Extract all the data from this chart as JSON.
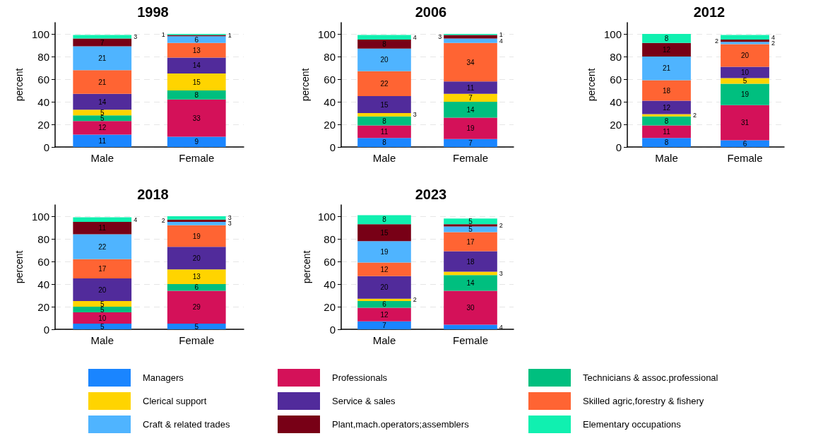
{
  "chart_data": [
    {
      "type": "bar",
      "title": "1998",
      "ylabel": "percent",
      "categories": [
        "Male",
        "Female"
      ],
      "stacked": true,
      "data_labels": true,
      "ylim": [
        0,
        110
      ],
      "yticks": [
        0,
        20,
        40,
        60,
        80,
        100
      ],
      "grid": "y",
      "legend": false,
      "series": [
        {
          "color": "#1a85ff",
          "values": [
            11,
            9
          ]
        },
        {
          "color": "#d41159",
          "values": [
            12,
            33
          ]
        },
        {
          "color": "#00bf7f",
          "values": [
            5,
            8
          ]
        },
        {
          "color": "#ffd400",
          "values": [
            5,
            15
          ]
        },
        {
          "color": "#512b9b",
          "values": [
            14,
            14
          ]
        },
        {
          "color": "#ff6433",
          "values": [
            21,
            13
          ]
        },
        {
          "color": "#4fb4ff",
          "values": [
            21,
            6
          ]
        },
        {
          "color": "#780016",
          "values": [
            7,
            1
          ]
        },
        {
          "color": "#10f0b0",
          "values": [
            3,
            1
          ]
        }
      ]
    },
    {
      "type": "bar",
      "title": "2006",
      "ylabel": "percent",
      "categories": [
        "Male",
        "Female"
      ],
      "stacked": true,
      "data_labels": true,
      "ylim": [
        0,
        110
      ],
      "yticks": [
        0,
        20,
        40,
        60,
        80,
        100
      ],
      "grid": "y",
      "legend": false,
      "series": [
        {
          "color": "#1a85ff",
          "values": [
            8,
            7
          ]
        },
        {
          "color": "#d41159",
          "values": [
            11,
            19
          ]
        },
        {
          "color": "#00bf7f",
          "values": [
            8,
            14
          ]
        },
        {
          "color": "#ffd400",
          "values": [
            3,
            7
          ]
        },
        {
          "color": "#512b9b",
          "values": [
            15,
            11
          ]
        },
        {
          "color": "#ff6433",
          "values": [
            22,
            34
          ]
        },
        {
          "color": "#4fb4ff",
          "values": [
            20,
            4
          ]
        },
        {
          "color": "#780016",
          "values": [
            8,
            3
          ]
        },
        {
          "color": "#10f0b0",
          "values": [
            4,
            1
          ]
        }
      ]
    },
    {
      "type": "bar",
      "title": "2012",
      "ylabel": "percent",
      "categories": [
        "Male",
        "Female"
      ],
      "stacked": true,
      "data_labels": true,
      "ylim": [
        0,
        110
      ],
      "yticks": [
        0,
        20,
        40,
        60,
        80,
        100
      ],
      "grid": "y",
      "legend": false,
      "series": [
        {
          "color": "#1a85ff",
          "values": [
            8,
            6
          ]
        },
        {
          "color": "#d41159",
          "values": [
            11,
            31
          ]
        },
        {
          "color": "#00bf7f",
          "values": [
            8,
            19
          ]
        },
        {
          "color": "#ffd400",
          "values": [
            2,
            5
          ]
        },
        {
          "color": "#512b9b",
          "values": [
            12,
            10
          ]
        },
        {
          "color": "#ff6433",
          "values": [
            18,
            20
          ]
        },
        {
          "color": "#4fb4ff",
          "values": [
            21,
            2
          ]
        },
        {
          "color": "#780016",
          "values": [
            12,
            2
          ]
        },
        {
          "color": "#10f0b0",
          "values": [
            8,
            4
          ]
        }
      ]
    },
    {
      "type": "bar",
      "title": "2018",
      "ylabel": "percent",
      "categories": [
        "Male",
        "Female"
      ],
      "stacked": true,
      "data_labels": true,
      "ylim": [
        0,
        110
      ],
      "yticks": [
        0,
        20,
        40,
        60,
        80,
        100
      ],
      "grid": "y",
      "legend": false,
      "series": [
        {
          "color": "#1a85ff",
          "values": [
            5,
            5
          ]
        },
        {
          "color": "#d41159",
          "values": [
            10,
            29
          ]
        },
        {
          "color": "#00bf7f",
          "values": [
            5,
            6
          ]
        },
        {
          "color": "#ffd400",
          "values": [
            5,
            13
          ]
        },
        {
          "color": "#512b9b",
          "values": [
            20,
            20
          ]
        },
        {
          "color": "#ff6433",
          "values": [
            17,
            19
          ]
        },
        {
          "color": "#4fb4ff",
          "values": [
            22,
            3
          ]
        },
        {
          "color": "#780016",
          "values": [
            11,
            2
          ]
        },
        {
          "color": "#10f0b0",
          "values": [
            4,
            3
          ]
        }
      ]
    },
    {
      "type": "bar",
      "title": "2023",
      "ylabel": "percent",
      "categories": [
        "Male",
        "Female"
      ],
      "stacked": true,
      "data_labels": true,
      "ylim": [
        0,
        110
      ],
      "yticks": [
        0,
        20,
        40,
        60,
        80,
        100
      ],
      "grid": "y",
      "legend": "bottom",
      "series": [
        {
          "name": "Managers",
          "color": "#1a85ff",
          "values": [
            7,
            4
          ]
        },
        {
          "name": "Professionals",
          "color": "#d41159",
          "values": [
            12,
            30
          ]
        },
        {
          "name": "Technicians & assoc.professional",
          "color": "#00bf7f",
          "values": [
            6,
            14
          ]
        },
        {
          "name": "Clerical support",
          "color": "#ffd400",
          "values": [
            2,
            3
          ]
        },
        {
          "name": "Service & sales",
          "color": "#512b9b",
          "values": [
            20,
            18
          ]
        },
        {
          "name": "Skilled agric,forestry & fishery",
          "color": "#ff6433",
          "values": [
            12,
            17
          ]
        },
        {
          "name": "Craft & related trades",
          "color": "#4fb4ff",
          "values": [
            19,
            5
          ]
        },
        {
          "name": "Plant,mach.operators;assemblers",
          "color": "#780016",
          "values": [
            15,
            2
          ]
        },
        {
          "name": "Elementary occupations",
          "color": "#10f0b0",
          "values": [
            8,
            5
          ]
        }
      ]
    }
  ]
}
